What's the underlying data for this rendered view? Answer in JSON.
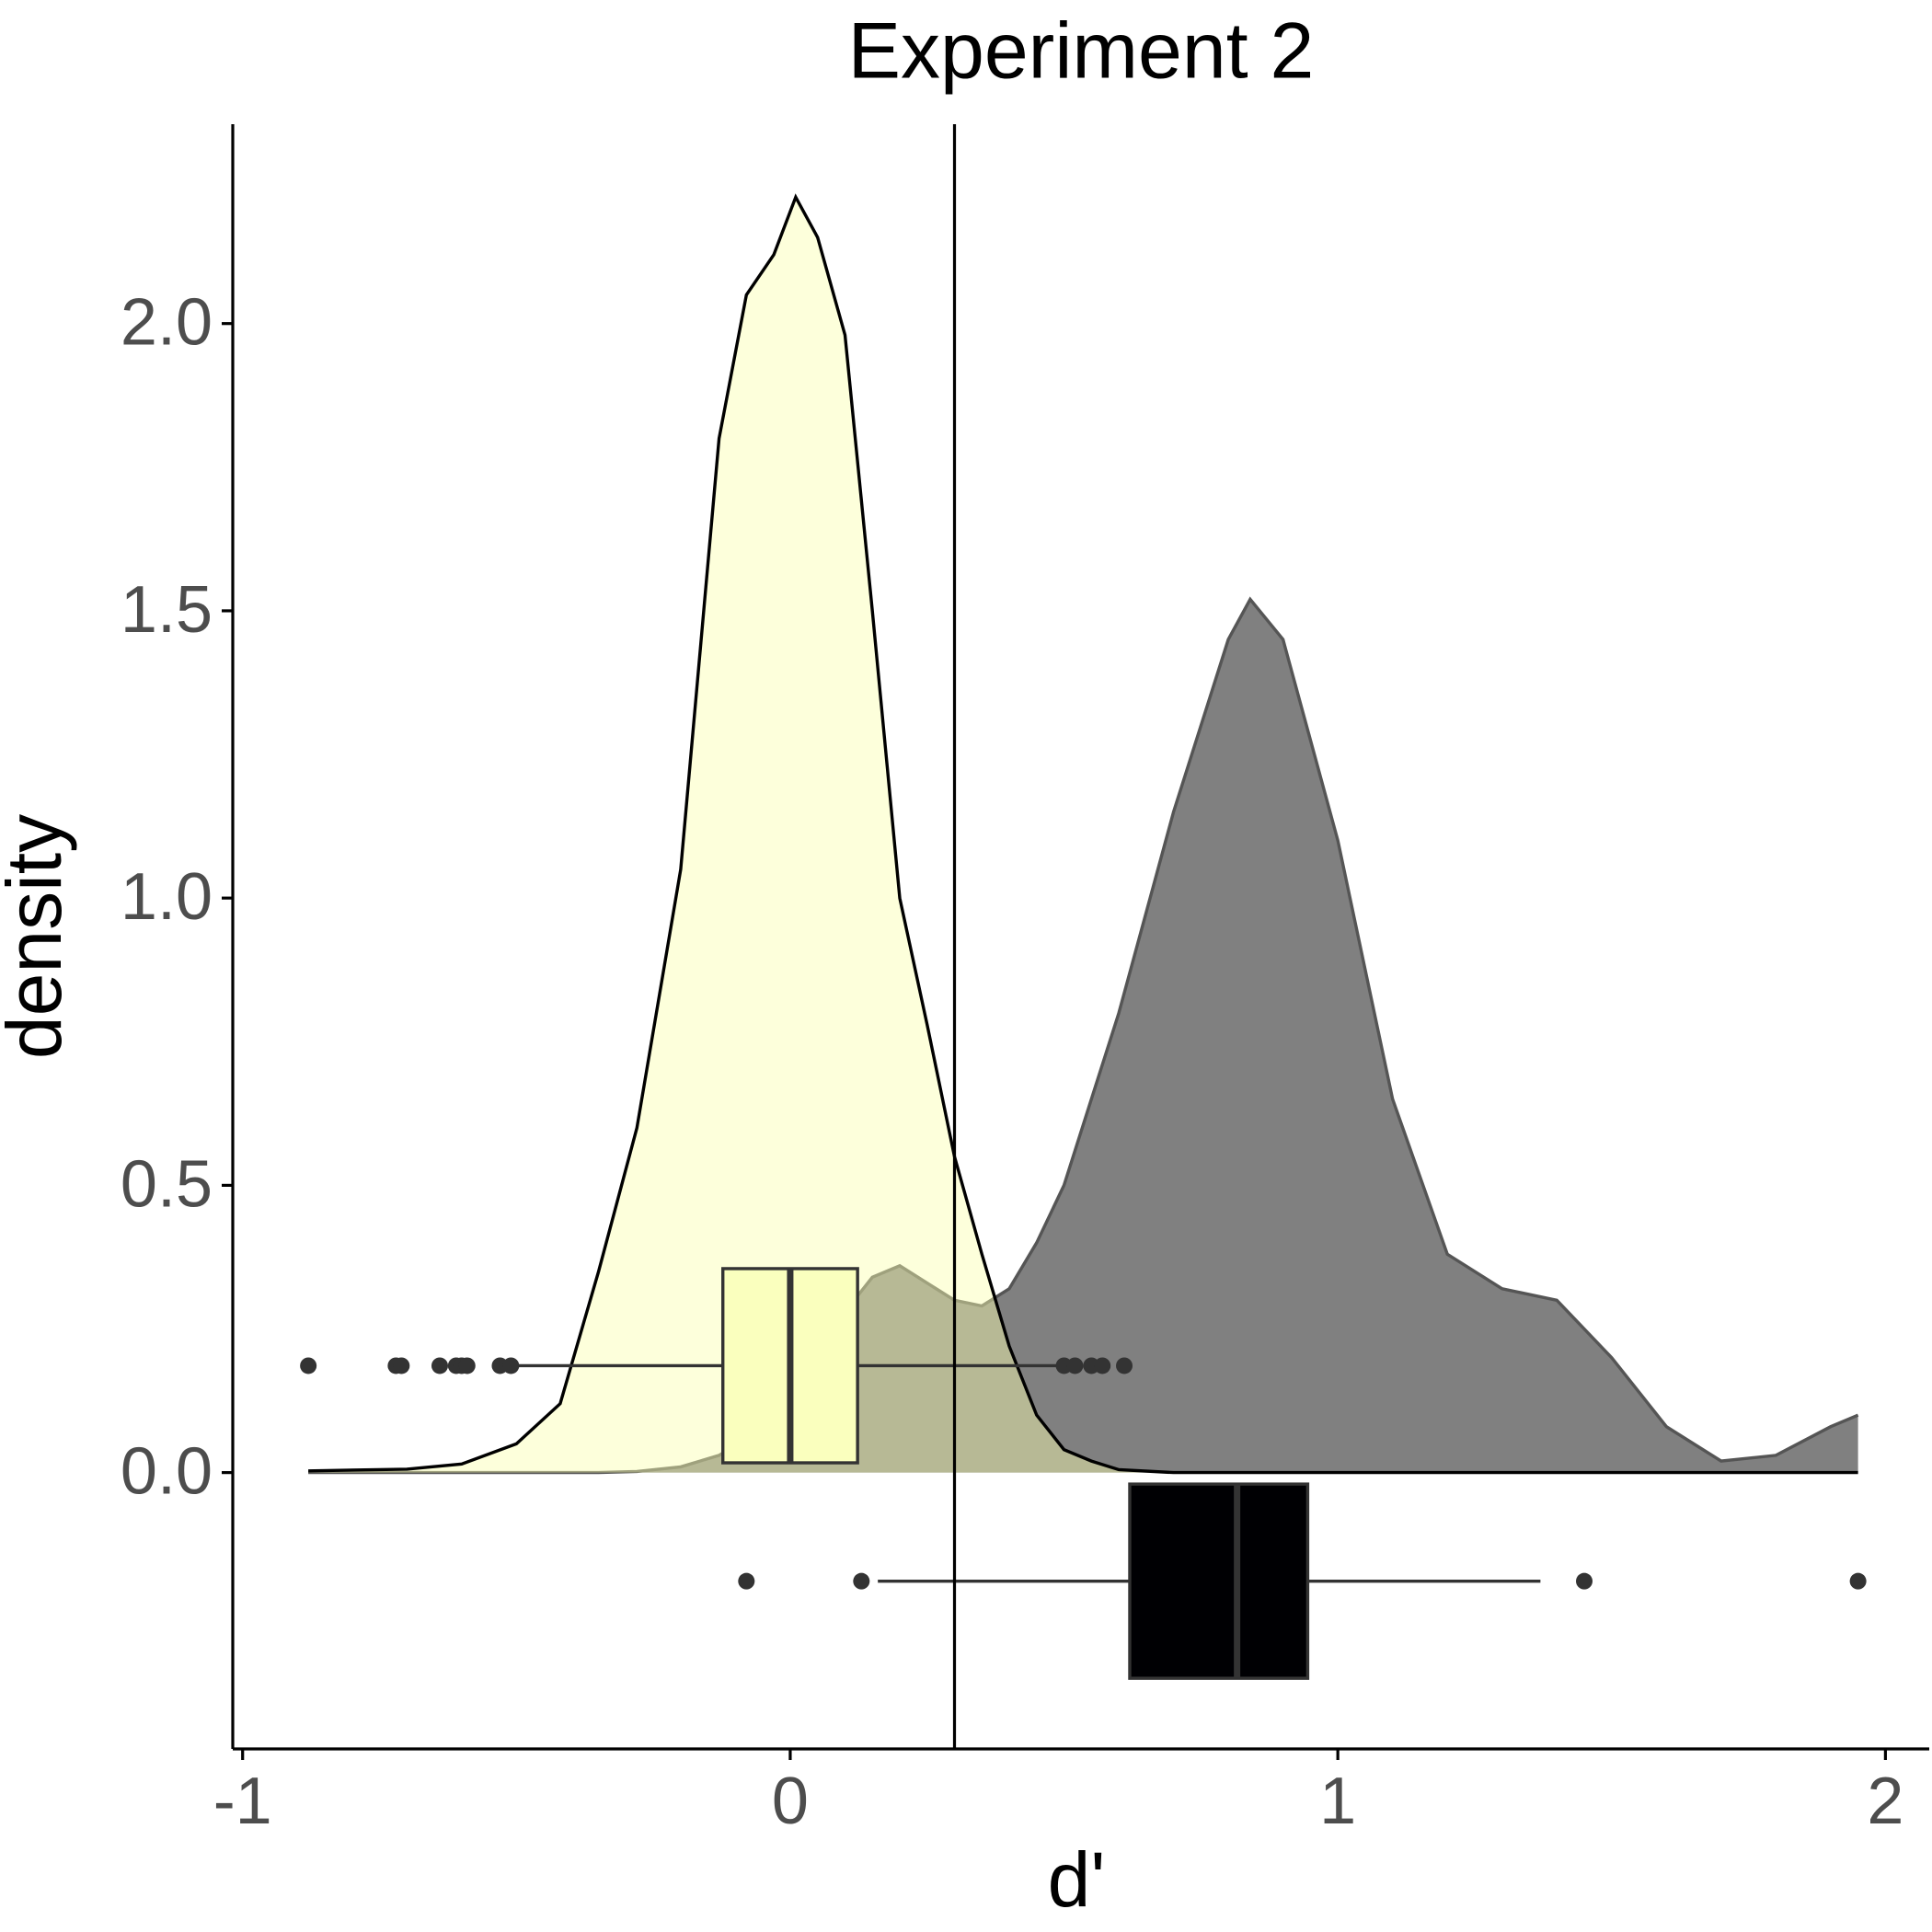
{
  "chart_data": {
    "type": "density",
    "title": "Experiment 2",
    "x_label": "d'",
    "y_label": "density",
    "xlim": [
      -1.018,
      2.08
    ],
    "ylim": [
      -0.481,
      2.347
    ],
    "xticks": [
      -1,
      0,
      1,
      2
    ],
    "yticks": [
      {
        "value": 0,
        "label": "0.0"
      },
      {
        "value": 0.5,
        "label": "0.5"
      },
      {
        "value": 1,
        "label": "1.0"
      },
      {
        "value": 1.5,
        "label": "1.5"
      },
      {
        "value": 2,
        "label": "2.0"
      }
    ],
    "x": [
      -0.88,
      -0.7,
      -0.6,
      -0.5,
      -0.42,
      -0.35,
      -0.28,
      -0.2,
      -0.13,
      -0.08,
      -0.03,
      0.01,
      0.05,
      0.1,
      0.15,
      0.2,
      0.25,
      0.3,
      0.35,
      0.4,
      0.45,
      0.5,
      0.55,
      0.6,
      0.7,
      0.8,
      0.84,
      0.9,
      1.0,
      1.1,
      1.2,
      1.3,
      1.4,
      1.5,
      1.6,
      1.7,
      1.8,
      1.9,
      1.95
    ],
    "series": [
      {
        "color": "#808080",
        "alpha": 1,
        "values": [
          0,
          0,
          0,
          0,
          0,
          0,
          0.002,
          0.01,
          0.03,
          0.06,
          0.1,
          0.14,
          0.2,
          0.28,
          0.34,
          0.36,
          0.33,
          0.3,
          0.29,
          0.32,
          0.4,
          0.5,
          0.65,
          0.8,
          1.15,
          1.45,
          1.52,
          1.45,
          1.1,
          0.65,
          0.38,
          0.32,
          0.3,
          0.2,
          0.08,
          0.02,
          0.03,
          0.08,
          0.1
        ]
      },
      {
        "color": "#FAFFAF",
        "alpha": 0.45,
        "values": [
          0.003,
          0.006,
          0.015,
          0.05,
          0.12,
          0.35,
          0.6,
          1.05,
          1.8,
          2.05,
          2.12,
          2.22,
          2.15,
          1.98,
          1.5,
          1.0,
          0.78,
          0.55,
          0.38,
          0.22,
          0.1,
          0.04,
          0.02,
          0.005,
          0,
          0,
          0,
          0,
          0,
          0,
          0,
          0,
          0,
          0,
          0,
          0,
          0,
          0,
          0
        ]
      }
    ],
    "boxes": [
      {
        "color": "#FAFFBE",
        "y_range": [
          0.017,
          0.355
        ],
        "q1": -0.123,
        "median": 0,
        "q3": 0.123,
        "whisker_low": -0.5,
        "whisker_high": 0.5,
        "outliers": [
          -0.88,
          -0.72,
          -0.71,
          -0.64,
          -0.61,
          -0.6,
          -0.59,
          -0.53,
          -0.51,
          0.5,
          0.52,
          0.55,
          0.57,
          0.61
        ]
      },
      {
        "color": "#000003",
        "y_range": [
          -0.358,
          -0.02
        ],
        "q1": 0.62,
        "median": 0.816,
        "q3": 0.945,
        "whisker_low": 0.16,
        "whisker_high": 1.37,
        "outliers": [
          -0.08,
          0.13,
          1.45,
          1.95
        ]
      }
    ],
    "vline": 0.3
  }
}
